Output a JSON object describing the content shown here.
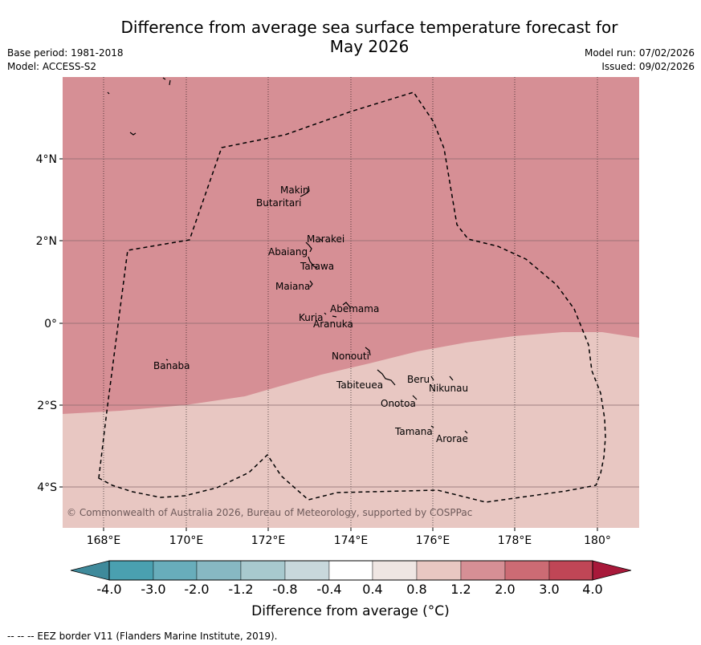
{
  "title": "Difference from average sea surface temperature forecast for May 2026",
  "title_lines": [
    "Difference from average sea surface temperature forecast for",
    "May 2026"
  ],
  "header": {
    "base_period": "Base period: 1981-2018",
    "model": "Model: ACCESS-S2",
    "model_run": "Model run: 07/02/2026",
    "issued": "Issued: 09/02/2026"
  },
  "map": {
    "lon_labels": [
      "168°E",
      "170°E",
      "172°E",
      "174°E",
      "176°E",
      "178°E",
      "180°"
    ],
    "lat_labels": [
      "4°N",
      "2°N",
      "0°",
      "2°S",
      "4°S"
    ],
    "credit": "© Commonwealth of Australia 2026, Bureau of Meteorology, supported by COSPPac",
    "colors": {
      "warm_region": "#d68f95",
      "mild_region": "#e8c7c2"
    },
    "islands": [
      "Makin",
      "Butaritari",
      "Marakei",
      "Abaiang",
      "Tarawa",
      "Maiana",
      "Abemama",
      "Kuria",
      "Aranuka",
      "Nonouti",
      "Banaba",
      "Tabiteuea",
      "Beru",
      "Nikunau",
      "Onotoa",
      "Tamana",
      "Arorae"
    ]
  },
  "colorbar": {
    "ticks": [
      "-4.0",
      "-3.0",
      "-2.0",
      "-1.2",
      "-0.8",
      "-0.4",
      "0.4",
      "0.8",
      "1.2",
      "2.0",
      "3.0",
      "4.0"
    ],
    "colors": [
      "#3f8a9b",
      "#4aa0b0",
      "#68adbb",
      "#87b8c3",
      "#a8c9ce",
      "#c8d8dc",
      "#ffffff",
      "#efe6e3",
      "#e8c7c2",
      "#d68f95",
      "#cc6b74",
      "#c04656",
      "#a8193a"
    ],
    "label": "Difference from average (°C)"
  },
  "footnote": "--  --  -- EEZ border V11 (Flanders Marine Institute, 2019)."
}
